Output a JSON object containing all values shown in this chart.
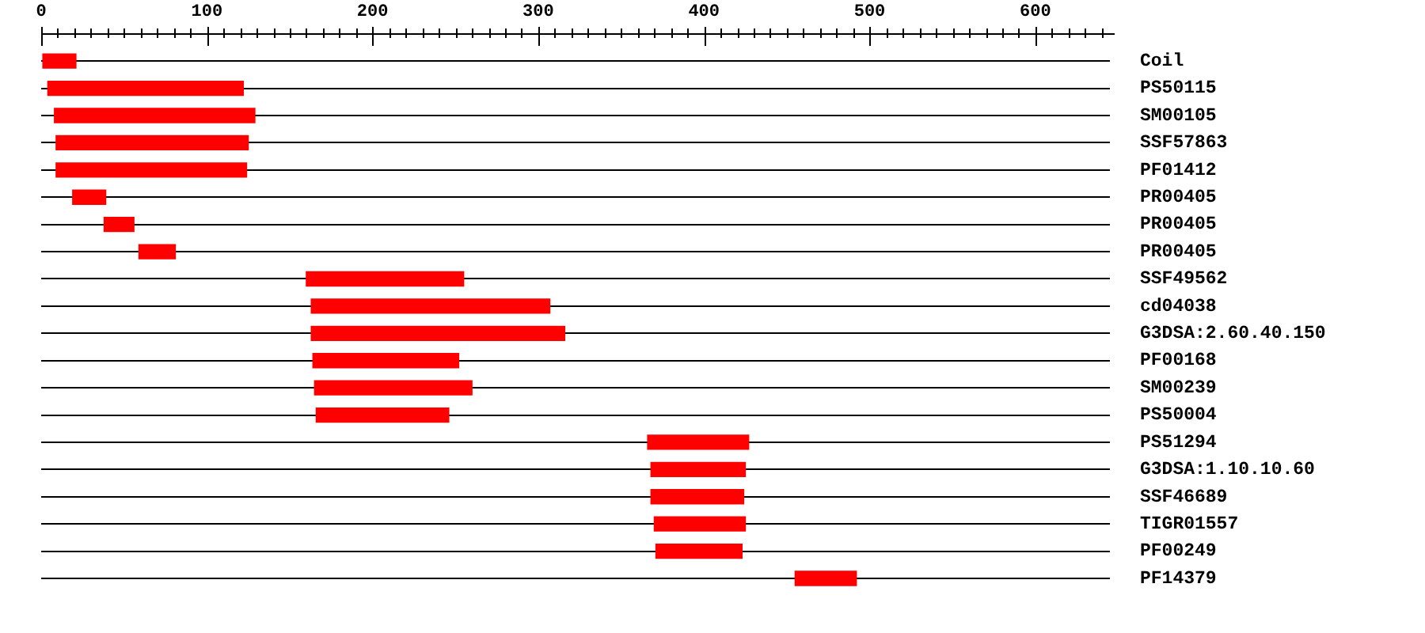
{
  "chart_data": {
    "type": "bar",
    "orientation": "horizontal",
    "categories": [
      "Coil",
      "PS50115",
      "SM00105",
      "SSF57863",
      "PF01412",
      "PR00405",
      "PR00405",
      "PR00405",
      "SSF49562",
      "cd04038",
      "G3DSA:2.60.40.150",
      "PF00168",
      "SM00239",
      "PS50004",
      "PS51294",
      "G3DSA:1.10.10.60",
      "SSF46689",
      "TIGR01557",
      "PF00249",
      "PF14379"
    ],
    "base": [
      1,
      4,
      8,
      9,
      9,
      19,
      38,
      59,
      160,
      163,
      163,
      164,
      165,
      166,
      366,
      368,
      368,
      370,
      371,
      455
    ],
    "values": [
      20,
      118,
      121,
      116,
      115,
      20,
      18,
      22,
      95,
      144,
      153,
      88,
      95,
      80,
      61,
      57,
      56,
      55,
      52,
      37
    ],
    "color": "#ff0000",
    "xlim": [
      0,
      645
    ],
    "xticks": [
      0,
      {
        "value": 10,
        "label": null
      },
      {
        "value": 20,
        "label": null
      },
      {
        "value": 30,
        "label": null
      },
      {
        "value": 40,
        "label": null
      },
      {
        "value": 50,
        "label": null
      },
      {
        "value": 60,
        "label": null
      },
      {
        "value": 70,
        "label": null
      },
      {
        "value": 80,
        "label": null
      },
      {
        "value": 90,
        "label": null
      },
      100,
      {
        "value": 110,
        "label": null
      },
      {
        "value": 120,
        "label": null
      },
      {
        "value": 130,
        "label": null
      },
      {
        "value": 140,
        "label": null
      },
      {
        "value": 150,
        "label": null
      },
      {
        "value": 160,
        "label": null
      },
      {
        "value": 170,
        "label": null
      },
      {
        "value": 180,
        "label": null
      },
      {
        "value": 190,
        "label": null
      },
      200,
      {
        "value": 210,
        "label": null
      },
      {
        "value": 220,
        "label": null
      },
      {
        "value": 230,
        "label": null
      },
      {
        "value": 240,
        "label": null
      },
      {
        "value": 250,
        "label": null
      },
      {
        "value": 260,
        "label": null
      },
      {
        "value": 270,
        "label": null
      },
      {
        "value": 280,
        "label": null
      },
      {
        "value": 290,
        "label": null
      },
      300,
      {
        "value": 310,
        "label": null
      },
      {
        "value": 320,
        "label": null
      },
      {
        "value": 330,
        "label": null
      },
      {
        "value": 340,
        "label": null
      },
      {
        "value": 350,
        "label": null
      },
      {
        "value": 360,
        "label": null
      },
      {
        "value": 370,
        "label": null
      },
      {
        "value": 380,
        "label": null
      },
      {
        "value": 390,
        "label": null
      },
      400,
      {
        "value": 410,
        "label": null
      },
      {
        "value": 420,
        "label": null
      },
      {
        "value": 430,
        "label": null
      },
      {
        "value": 440,
        "label": null
      },
      {
        "value": 450,
        "label": null
      },
      {
        "value": 460,
        "label": null
      },
      {
        "value": 470,
        "label": null
      },
      {
        "value": 480,
        "label": null
      },
      {
        "value": 490,
        "label": null
      },
      500,
      {
        "value": 510,
        "label": null
      },
      {
        "value": 520,
        "label": null
      },
      {
        "value": 530,
        "label": null
      },
      {
        "value": 540,
        "label": null
      },
      {
        "value": 550,
        "label": null
      },
      {
        "value": 560,
        "label": null
      },
      {
        "value": 570,
        "label": null
      },
      {
        "value": 580,
        "label": null
      },
      {
        "value": 590,
        "label": null
      },
      600,
      {
        "value": 610,
        "label": null
      },
      {
        "value": 620,
        "label": null
      },
      {
        "value": 630,
        "label": null
      },
      {
        "value": 640,
        "label": null
      }
    ],
    "grid": "y"
  }
}
